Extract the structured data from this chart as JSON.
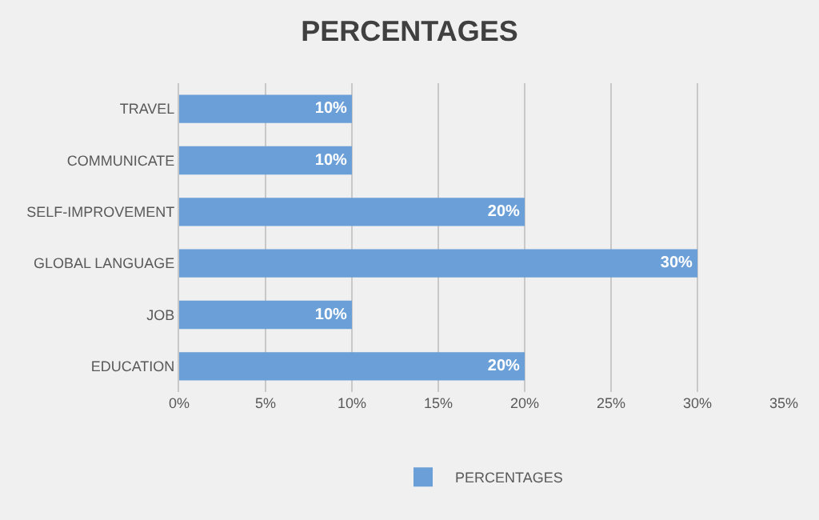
{
  "chart_data": {
    "type": "bar",
    "title": "PERCENTAGES",
    "orientation": "horizontal",
    "categories": [
      "TRAVEL",
      "COMMUNICATE",
      "SELF-IMPROVEMENT",
      "GLOBAL LANGUAGE",
      "JOB",
      "EDUCATION"
    ],
    "series": [
      {
        "name": "PERCENTAGES",
        "color": "#6a9fd8",
        "values": [
          10,
          10,
          20,
          30,
          10,
          20
        ],
        "value_labels": [
          "10%",
          "10%",
          "20%",
          "30%",
          "10%",
          "20%"
        ]
      }
    ],
    "xlim": [
      0,
      35
    ],
    "xticks": [
      {
        "value": 0,
        "label": "0%"
      },
      {
        "value": 5,
        "label": "5%"
      },
      {
        "value": 10,
        "label": "10%"
      },
      {
        "value": 15,
        "label": "15%"
      },
      {
        "value": 20,
        "label": "20%"
      },
      {
        "value": 25,
        "label": "25%"
      },
      {
        "value": 30,
        "label": "30%"
      },
      {
        "value": 35,
        "label": "35%"
      }
    ],
    "grid": "x",
    "legend": "bottom"
  }
}
